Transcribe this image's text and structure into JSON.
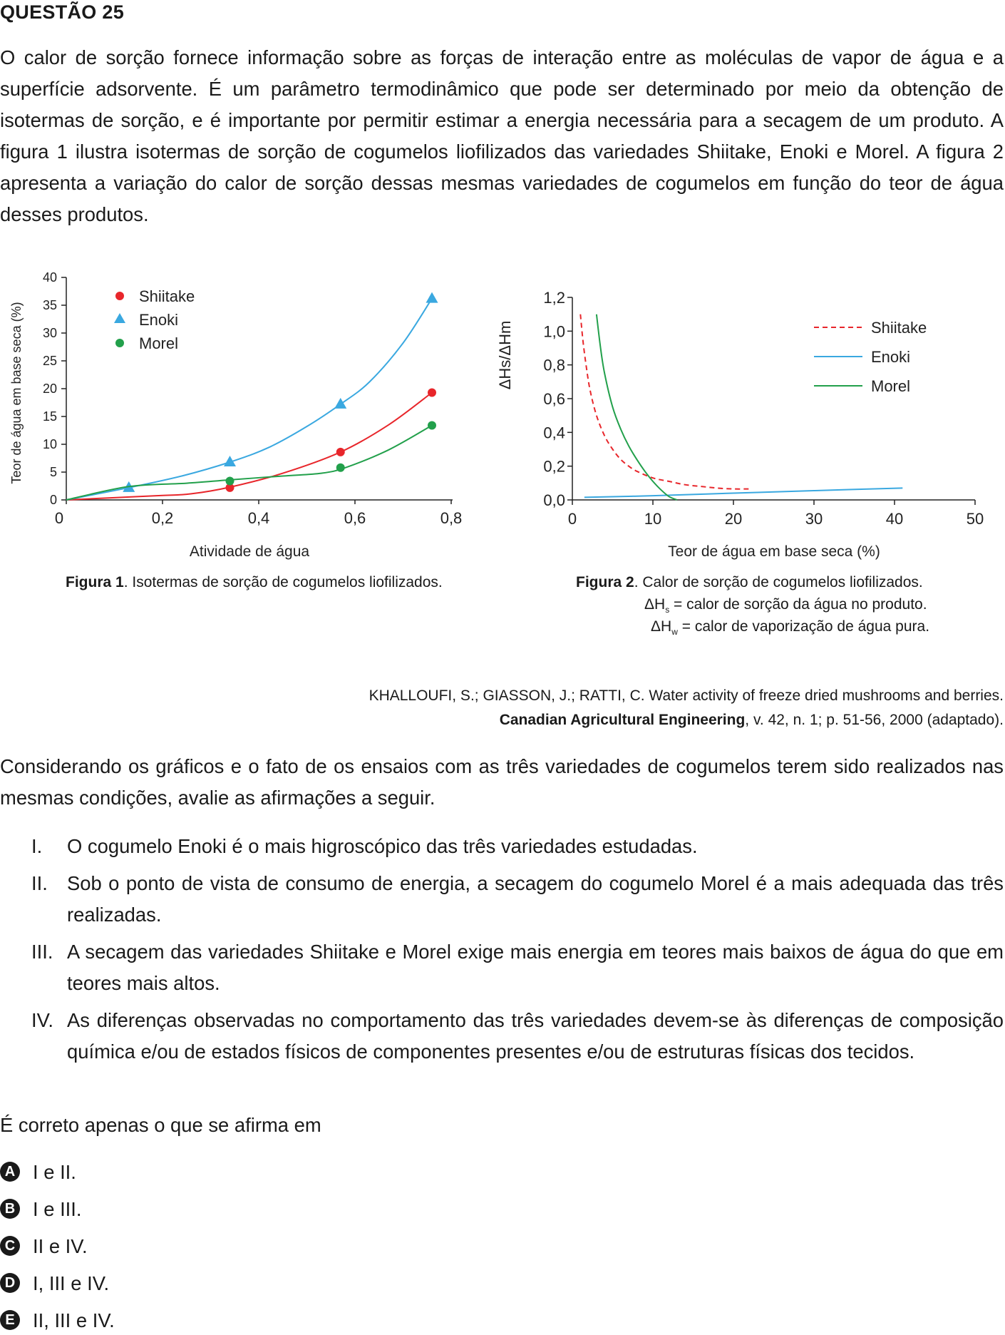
{
  "question_title": "QUESTÃO 25",
  "intro": "O calor de sorção fornece informação sobre as forças de interação entre as moléculas de vapor de água e a superfície adsorvente. É um parâmetro termodinâmico que pode ser determinado por meio da obtenção de isotermas de sorção, e é importante por permitir estimar a energia necessária para a secagem de um produto. A figura 1 ilustra isotermas de sorção de cogumelos liofilizados das variedades Shiitake, Enoki e Morel. A figura 2 apresenta a variação do calor de sorção dessas mesmas variedades de cogumelos em função do teor de água desses produtos.",
  "figure1": {
    "caption_bold": "Figura 1",
    "caption_text": ". Isotermas de sorção de cogumelos liofilizados."
  },
  "figure2": {
    "caption_bold": "Figura 2",
    "caption_text": ". Calor de sorção de cogumelos liofilizados.",
    "note_hs": "= calor de sorção da água no produto.",
    "note_hw": "= calor de vaporização de água pura."
  },
  "chart_data": [
    {
      "type": "scatter",
      "xlabel": "Atividade de água",
      "ylabel": "Teor de água em base seca (%)",
      "xlim": [
        0,
        0.8
      ],
      "ylim": [
        0,
        40
      ],
      "xticks": [
        "0",
        "0,2",
        "0,4",
        "0,6",
        "0,8"
      ],
      "yticks": [
        "0",
        "5",
        "10",
        "15",
        "20",
        "25",
        "30",
        "35",
        "40"
      ],
      "legend_position": "top-left",
      "grid": false,
      "series": [
        {
          "name": "Shiitake",
          "marker": "circle",
          "color": "#e8262b",
          "points": [
            [
              0.34,
              2.2
            ],
            [
              0.57,
              8.6
            ],
            [
              0.76,
              19.3
            ]
          ],
          "curve": [
            [
              0,
              0
            ],
            [
              0.1,
              0.4
            ],
            [
              0.2,
              0.8
            ],
            [
              0.26,
              1.1
            ],
            [
              0.34,
              2.3
            ],
            [
              0.45,
              4.8
            ],
            [
              0.57,
              8.6
            ],
            [
              0.67,
              13.5
            ],
            [
              0.76,
              19.3
            ]
          ]
        },
        {
          "name": "Enoki",
          "marker": "triangle",
          "color": "#3aa8e0",
          "points": [
            [
              0.13,
              2.2
            ],
            [
              0.34,
              6.8
            ],
            [
              0.57,
              17.2
            ],
            [
              0.76,
              36.2
            ]
          ],
          "curve": [
            [
              0,
              0
            ],
            [
              0.13,
              2.2
            ],
            [
              0.24,
              4.3
            ],
            [
              0.34,
              6.8
            ],
            [
              0.42,
              9.4
            ],
            [
              0.5,
              13.2
            ],
            [
              0.57,
              17.2
            ],
            [
              0.63,
              21.2
            ],
            [
              0.7,
              28.2
            ],
            [
              0.76,
              36.2
            ]
          ]
        },
        {
          "name": "Morel",
          "marker": "circle",
          "color": "#22a04b",
          "points": [
            [
              0.34,
              3.4
            ],
            [
              0.57,
              5.8
            ],
            [
              0.76,
              13.4
            ]
          ],
          "curve": [
            [
              0,
              0
            ],
            [
              0.13,
              2.4
            ],
            [
              0.25,
              3.0
            ],
            [
              0.34,
              3.6
            ],
            [
              0.45,
              4.3
            ],
            [
              0.53,
              4.8
            ],
            [
              0.58,
              5.8
            ],
            [
              0.67,
              9.0
            ],
            [
              0.76,
              13.4
            ]
          ]
        }
      ]
    },
    {
      "type": "line",
      "xlabel": "Teor de água em base seca (%)",
      "ylabel": "ΔHs/ΔHm",
      "xlim": [
        0,
        50
      ],
      "ylim": [
        0,
        1.2
      ],
      "xticks": [
        "0",
        "10",
        "20",
        "30",
        "40",
        "50"
      ],
      "yticks": [
        "0,0",
        "0,2",
        "0,4",
        "0,6",
        "0,8",
        "1,0",
        "1,2"
      ],
      "legend_position": "top-right",
      "grid": false,
      "series": [
        {
          "name": "Shiitake",
          "style": "dashed",
          "color": "#e8262b",
          "x": [
            1.0,
            1.3,
            1.7,
            2.2,
            3,
            4,
            5,
            6,
            7,
            8,
            10,
            12,
            14,
            16,
            18,
            20,
            22
          ],
          "y": [
            1.1,
            0.95,
            0.8,
            0.65,
            0.5,
            0.38,
            0.3,
            0.24,
            0.2,
            0.17,
            0.13,
            0.11,
            0.09,
            0.08,
            0.07,
            0.065,
            0.065
          ]
        },
        {
          "name": "Enoki",
          "style": "solid",
          "color": "#3aa8e0",
          "x": [
            1.5,
            10,
            20,
            30,
            41
          ],
          "y": [
            0.015,
            0.025,
            0.04,
            0.055,
            0.07
          ]
        },
        {
          "name": "Morel",
          "style": "solid",
          "color": "#22a04b",
          "x": [
            3,
            3.5,
            4,
            5,
            6,
            7,
            8,
            9,
            10,
            11,
            12,
            13
          ],
          "y": [
            1.1,
            0.9,
            0.75,
            0.55,
            0.42,
            0.32,
            0.24,
            0.17,
            0.11,
            0.06,
            0.02,
            0.0
          ]
        }
      ]
    }
  ],
  "reference": {
    "line1": "KHALLOUFI, S.; GIASSON, J.; RATTI, C. Water activity of freeze dried mushrooms and berries.",
    "journal_bold": "Canadian Agricultural Engineering",
    "line2_rest": ", v. 42, n. 1; p. 51-56, 2000 (adaptado)."
  },
  "prompt": "Considerando os gráficos e o fato de os ensaios com as três variedades de cogumelos terem sido realizados nas mesmas condições, avalie as afirmações a seguir.",
  "statements": [
    {
      "num": "I.",
      "text": "O cogumelo Enoki é o mais higroscópico das três variedades estudadas."
    },
    {
      "num": "II.",
      "text": "Sob o ponto de vista de consumo de energia, a secagem do cogumelo Morel é a mais adequada das três realizadas."
    },
    {
      "num": "III.",
      "text": "A secagem das variedades Shiitake e Morel exige mais energia em teores mais baixos de água do que em teores mais altos."
    },
    {
      "num": "IV.",
      "text": "As diferenças observadas no comportamento das três variedades devem-se às diferenças de composição química e/ou de estados físicos de componentes presentes e/ou de estruturas físicas dos tecidos."
    }
  ],
  "question_stem": "É correto apenas o que se afirma em",
  "options": [
    {
      "letter": "A",
      "text": "I e II."
    },
    {
      "letter": "B",
      "text": "I e III."
    },
    {
      "letter": "C",
      "text": "II e IV."
    },
    {
      "letter": "D",
      "text": "I, III e IV."
    },
    {
      "letter": "E",
      "text": "II, III e IV."
    }
  ]
}
